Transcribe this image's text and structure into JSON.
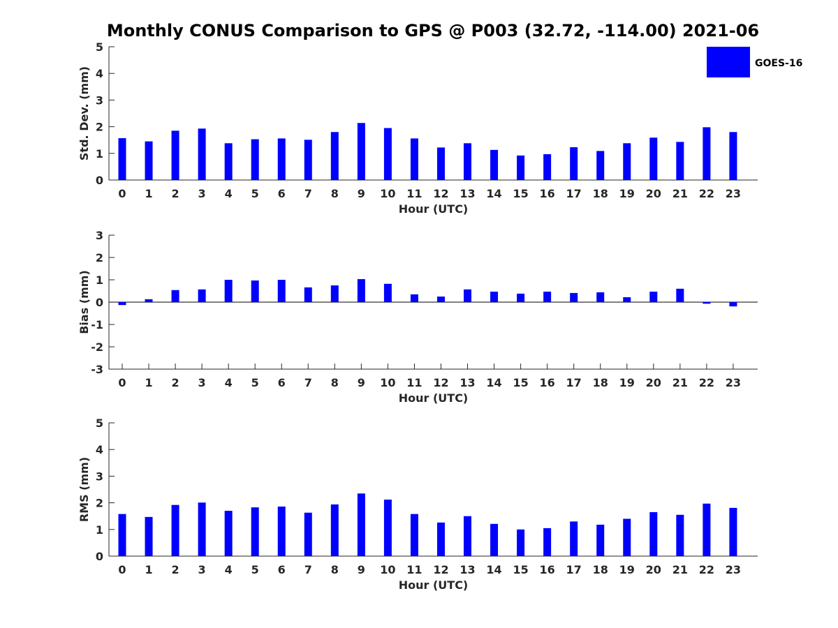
{
  "chart_data": {
    "title": "Monthly CONUS Comparison to GPS @ P003 (32.72, -114.00) 2021-06",
    "type": "bar",
    "legend": {
      "label": "GOES-16",
      "color": "#0000ff",
      "placement": "top-right"
    },
    "grid": false,
    "bar_color": "#0000ff",
    "categories": [
      "0",
      "1",
      "2",
      "3",
      "4",
      "5",
      "6",
      "7",
      "8",
      "9",
      "10",
      "11",
      "12",
      "13",
      "14",
      "15",
      "16",
      "17",
      "18",
      "19",
      "20",
      "21",
      "22",
      "23"
    ],
    "panels": [
      {
        "ylabel": "Std. Dev. (mm)",
        "xlabel": "Hour (UTC)",
        "ylim": [
          0,
          5
        ],
        "yticks": [
          "0",
          "1",
          "2",
          "3",
          "4",
          "5"
        ],
        "series": [
          {
            "name": "GOES-16",
            "values": [
              1.57,
              1.45,
              1.85,
              1.93,
              1.38,
              1.53,
              1.56,
              1.51,
              1.8,
              2.14,
              1.95,
              1.56,
              1.22,
              1.38,
              1.13,
              0.92,
              0.97,
              1.23,
              1.09,
              1.38,
              1.59,
              1.43,
              1.98,
              1.8
            ]
          }
        ]
      },
      {
        "ylabel": "Bias (mm)",
        "xlabel": "Hour (UTC)",
        "ylim": [
          -3,
          3
        ],
        "yticks": [
          "-3",
          "-2",
          "-1",
          "0",
          "1",
          "2",
          "3"
        ],
        "zero_line": true,
        "series": [
          {
            "name": "GOES-16",
            "values": [
              -0.13,
              0.13,
              0.54,
              0.57,
              1.0,
              0.97,
              1.0,
              0.66,
              0.75,
              1.03,
              0.82,
              0.35,
              0.25,
              0.57,
              0.47,
              0.38,
              0.47,
              0.41,
              0.44,
              0.22,
              0.47,
              0.6,
              -0.07,
              -0.19
            ]
          }
        ]
      },
      {
        "ylabel": "RMS (mm)",
        "xlabel": "Hour (UTC)",
        "ylim": [
          0,
          5
        ],
        "yticks": [
          "0",
          "1",
          "2",
          "3",
          "4",
          "5"
        ],
        "series": [
          {
            "name": "GOES-16",
            "values": [
              1.58,
              1.47,
              1.92,
              2.01,
              1.7,
              1.83,
              1.86,
              1.63,
              1.94,
              2.35,
              2.12,
              1.58,
              1.26,
              1.5,
              1.21,
              1.0,
              1.05,
              1.3,
              1.18,
              1.4,
              1.65,
              1.55,
              1.97,
              1.81
            ]
          }
        ]
      }
    ]
  }
}
